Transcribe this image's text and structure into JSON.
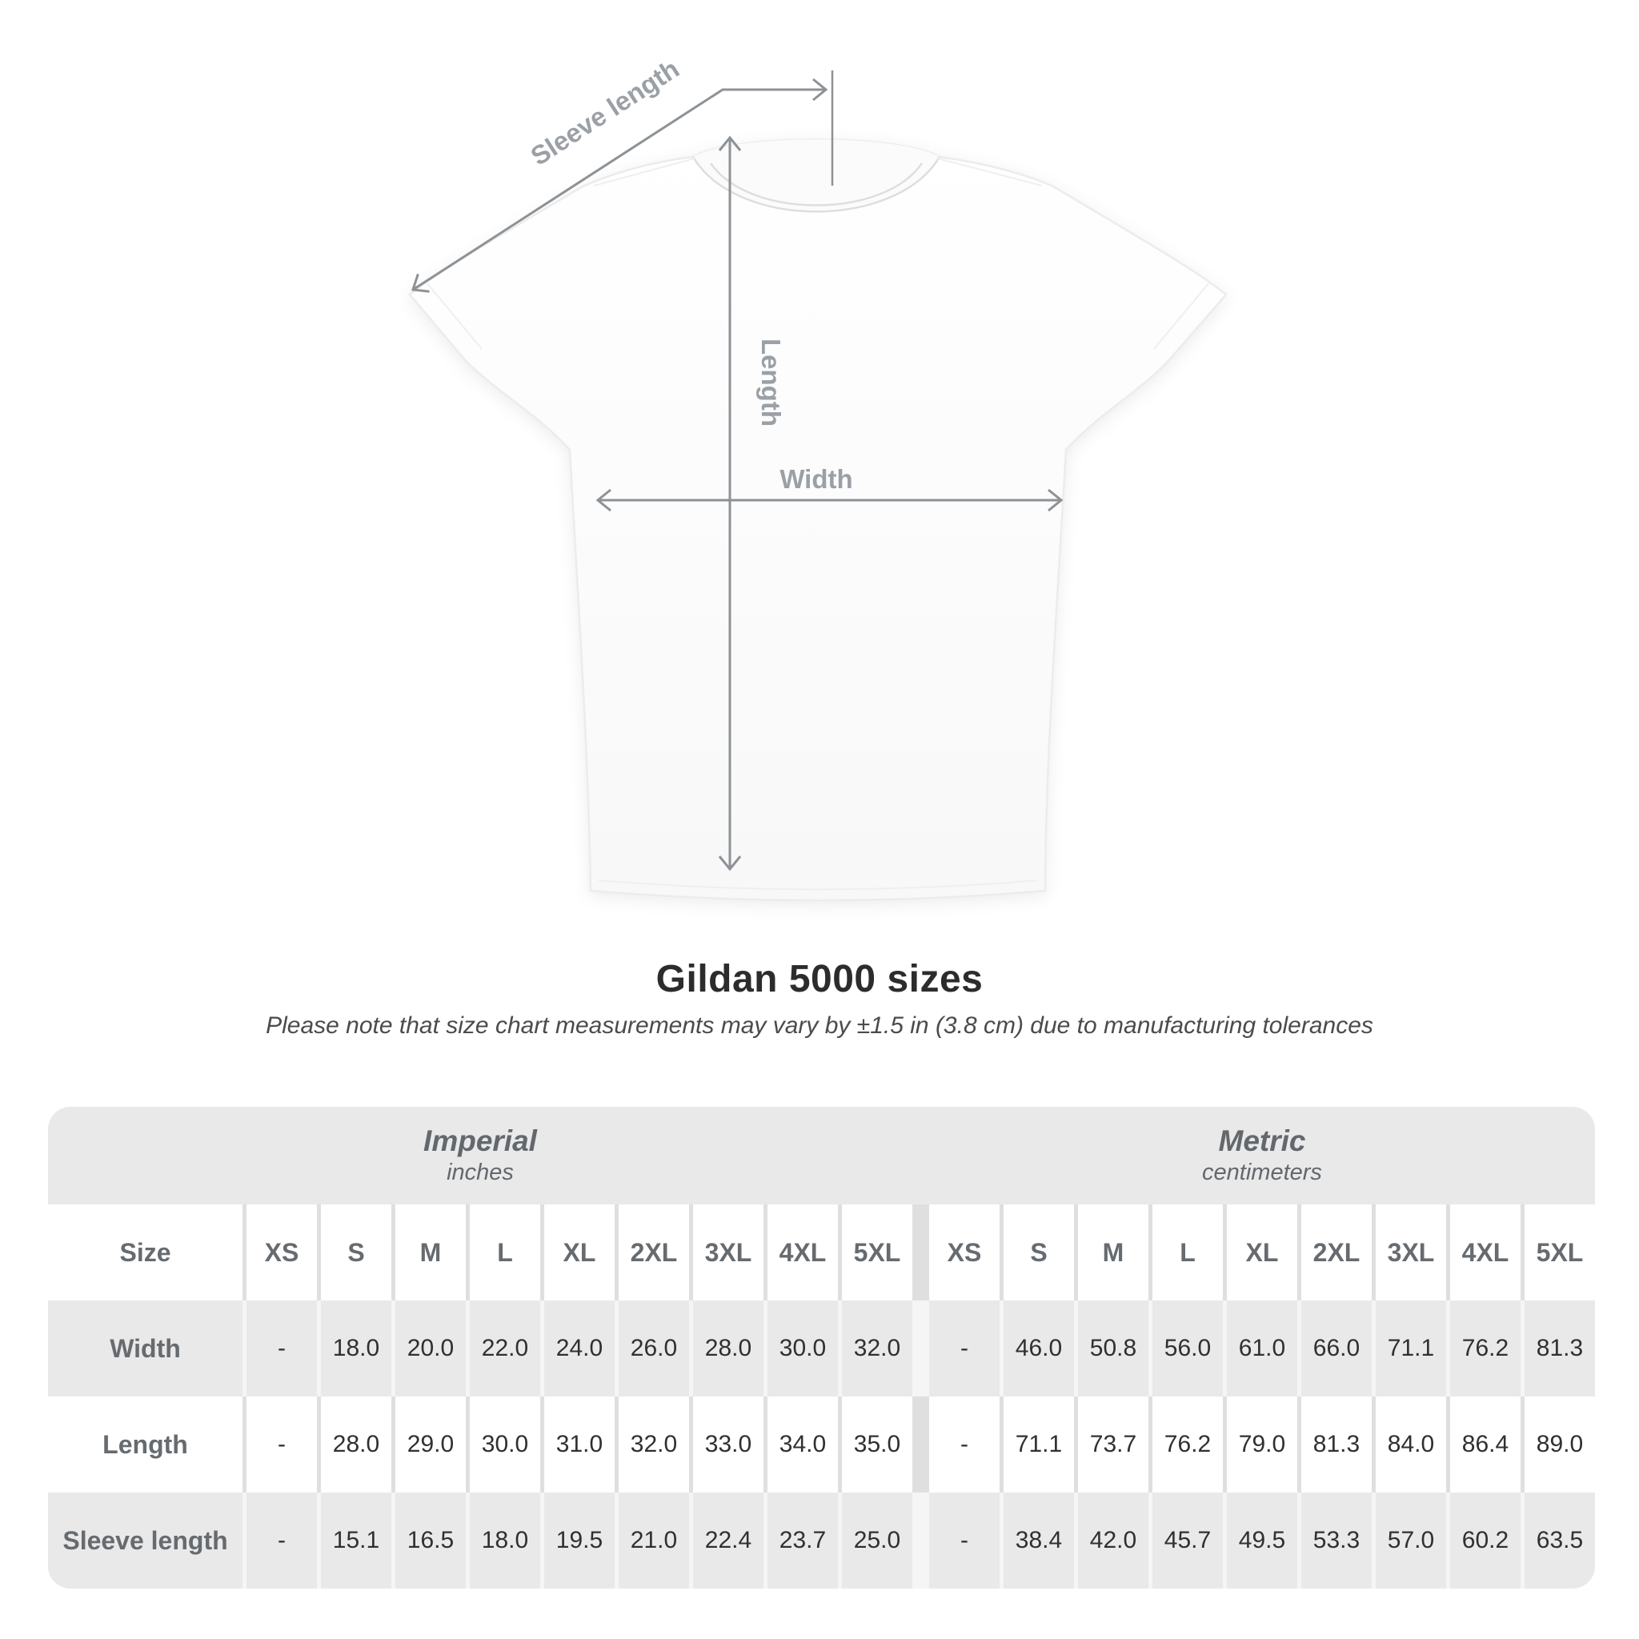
{
  "diagram": {
    "labels": {
      "sleeve_length": "Sleeve length",
      "length": "Length",
      "width": "Width"
    }
  },
  "title": "Gildan 5000 sizes",
  "subtitle": "Please note that size chart measurements may vary by ±1.5 in (3.8 cm) due to manufacturing tolerances",
  "table": {
    "size_label": "Size",
    "sections": [
      {
        "name": "Imperial",
        "unit": "inches"
      },
      {
        "name": "Metric",
        "unit": "centimeters"
      }
    ],
    "sizes": [
      "XS",
      "S",
      "M",
      "L",
      "XL",
      "2XL",
      "3XL",
      "4XL",
      "5XL"
    ],
    "rows": [
      {
        "label": "Width",
        "imperial": [
          "-",
          "18.0",
          "20.0",
          "22.0",
          "24.0",
          "26.0",
          "28.0",
          "30.0",
          "32.0"
        ],
        "metric": [
          "-",
          "46.0",
          "50.8",
          "56.0",
          "61.0",
          "66.0",
          "71.1",
          "76.2",
          "81.3"
        ]
      },
      {
        "label": "Length",
        "imperial": [
          "-",
          "28.0",
          "29.0",
          "30.0",
          "31.0",
          "32.0",
          "33.0",
          "34.0",
          "35.0"
        ],
        "metric": [
          "-",
          "71.1",
          "73.7",
          "76.2",
          "79.0",
          "81.3",
          "84.0",
          "86.4",
          "89.0"
        ]
      },
      {
        "label": "Sleeve length",
        "imperial": [
          "-",
          "15.1",
          "16.5",
          "18.0",
          "19.5",
          "21.0",
          "22.4",
          "23.7",
          "25.0"
        ],
        "metric": [
          "-",
          "38.4",
          "42.0",
          "45.7",
          "49.5",
          "53.3",
          "57.0",
          "60.2",
          "63.5"
        ]
      }
    ]
  },
  "chart_data": {
    "type": "table",
    "title": "Gildan 5000 sizes",
    "columns": [
      "XS",
      "S",
      "M",
      "L",
      "XL",
      "2XL",
      "3XL",
      "4XL",
      "5XL"
    ],
    "series": [
      {
        "name": "Width (inches)",
        "values": [
          null,
          18.0,
          20.0,
          22.0,
          24.0,
          26.0,
          28.0,
          30.0,
          32.0
        ]
      },
      {
        "name": "Length (inches)",
        "values": [
          null,
          28.0,
          29.0,
          30.0,
          31.0,
          32.0,
          33.0,
          34.0,
          35.0
        ]
      },
      {
        "name": "Sleeve length (inches)",
        "values": [
          null,
          15.1,
          16.5,
          18.0,
          19.5,
          21.0,
          22.4,
          23.7,
          25.0
        ]
      },
      {
        "name": "Width (cm)",
        "values": [
          null,
          46.0,
          50.8,
          56.0,
          61.0,
          66.0,
          71.1,
          76.2,
          81.3
        ]
      },
      {
        "name": "Length (cm)",
        "values": [
          null,
          71.1,
          73.7,
          76.2,
          79.0,
          81.3,
          84.0,
          86.4,
          89.0
        ]
      },
      {
        "name": "Sleeve length (cm)",
        "values": [
          null,
          38.4,
          42.0,
          45.7,
          49.5,
          53.3,
          57.0,
          60.2,
          63.5
        ]
      }
    ]
  },
  "colors": {
    "stripe_gray": "#e9e9e9",
    "dimension_line": "#8d9296",
    "dimension_label": "#9aa0a5",
    "header_text": "#666b70",
    "value_text": "#303030",
    "title_text": "#2c2c2c"
  }
}
